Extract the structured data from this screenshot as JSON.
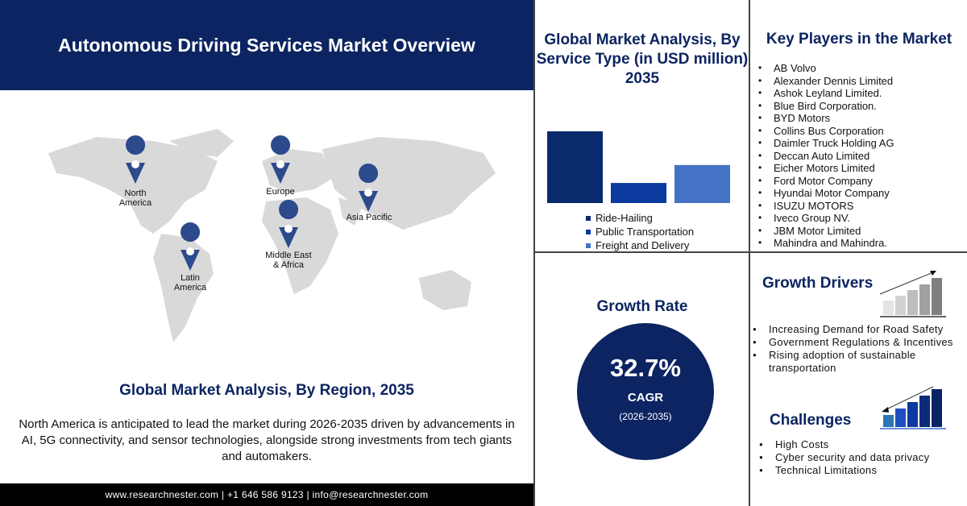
{
  "header": {
    "title": "Autonomous Driving Services Market Overview"
  },
  "map": {
    "regions": [
      {
        "label": "North\nAmerica"
      },
      {
        "label": "Europe"
      },
      {
        "label": "Asia Pacific"
      },
      {
        "label": "Middle East\n& Africa"
      },
      {
        "label": "Latin\nAmerica"
      }
    ],
    "pin_color": "#2c4a8c",
    "land_color": "#d9d9d9"
  },
  "region_section": {
    "title": "Global Market Analysis, By Region, 2035",
    "description": "North America is anticipated to lead the market during 2026-2035 driven by advancements in AI, 5G connectivity, and sensor technologies, alongside strong investments from tech giants and automakers."
  },
  "footer": {
    "text": "www.researchnester.com | +1 646 586 9123 | info@researchnester.com"
  },
  "chart_data": {
    "type": "bar",
    "title": "Global Market Analysis, By Service Type (in USD million) 2035",
    "categories": [
      "Ride-Hailing",
      "Public Transportation",
      "Freight and Delivery"
    ],
    "values": [
      100,
      28,
      53
    ],
    "value_note": "relative bar heights, no axis printed",
    "colors": [
      "#0a2a6e",
      "#0a3a9e",
      "#4472c4"
    ],
    "legend_position": "bottom",
    "grid": false
  },
  "key_players": {
    "title": "Key Players in the Market",
    "items": [
      "AB Volvo",
      "Alexander Dennis Limited",
      "Ashok Leyland Limited.",
      "Blue Bird Corporation.",
      "BYD Motors",
      "Collins Bus Corporation",
      "Daimler Truck Holding AG",
      "Deccan Auto Limited",
      "Eicher Motors Limited",
      "Ford Motor Company",
      "Hyundai Motor Company",
      "ISUZU MOTORS",
      "Iveco Group NV.",
      "JBM Motor Limited",
      "Mahindra and Mahindra."
    ]
  },
  "growth": {
    "title": "Growth Rate",
    "value": "32.7%",
    "label": "CAGR",
    "period": "(2026-2035)"
  },
  "drivers": {
    "title": "Growth Drivers",
    "items": [
      "Increasing Demand for Road Safety",
      "Government Regulations & Incentives",
      "Rising adoption of sustainable transportation"
    ]
  },
  "challenges": {
    "title": "Challenges",
    "items": [
      "High Costs",
      "Cyber security and data privacy",
      "Technical Limitations"
    ]
  },
  "colors": {
    "navy": "#0c2461",
    "footer": "#000000"
  }
}
